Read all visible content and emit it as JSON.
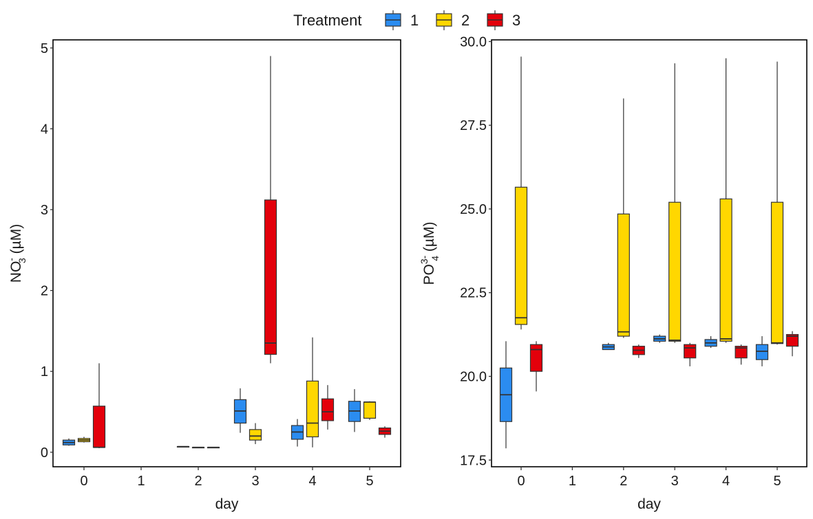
{
  "legend": {
    "title": "Treatment",
    "entries": [
      {
        "label": "1",
        "color": "#2b8cf0"
      },
      {
        "label": "2",
        "color": "#ffd700"
      },
      {
        "label": "3",
        "color": "#e3000b"
      }
    ]
  },
  "chart_data": [
    {
      "type": "boxplot",
      "xlabel": "day",
      "ylabel_main": "NO",
      "ylabel_sub": "3",
      "ylabel_sup": "-",
      "ylabel_unit": " (µM)",
      "categories": [
        "0",
        "1",
        "2",
        "3",
        "4",
        "5"
      ],
      "ylim": [
        -0.18,
        5.1
      ],
      "yticks": [
        0,
        1,
        2,
        3,
        4,
        5
      ],
      "yticklabels": [
        "0",
        "1",
        "2",
        "3",
        "4",
        "5"
      ],
      "boxes": [
        {
          "day": "0",
          "treatment": "1",
          "min": 0.08,
          "q1": 0.09,
          "median": 0.12,
          "q3": 0.15,
          "max": 0.17
        },
        {
          "day": "0",
          "treatment": "2",
          "min": 0.12,
          "q1": 0.13,
          "median": 0.15,
          "q3": 0.17,
          "max": 0.19
        },
        {
          "day": "0",
          "treatment": "3",
          "min": 0.05,
          "q1": 0.06,
          "median": 0.06,
          "q3": 0.57,
          "max": 1.1
        },
        {
          "day": "2",
          "treatment": "1",
          "min": 0.07,
          "q1": 0.07,
          "median": 0.07,
          "q3": 0.07,
          "max": 0.07
        },
        {
          "day": "2",
          "treatment": "2",
          "min": 0.06,
          "q1": 0.06,
          "median": 0.06,
          "q3": 0.06,
          "max": 0.06
        },
        {
          "day": "2",
          "treatment": "3",
          "min": 0.06,
          "q1": 0.06,
          "median": 0.06,
          "q3": 0.06,
          "max": 0.06
        },
        {
          "day": "3",
          "treatment": "1",
          "min": 0.24,
          "q1": 0.36,
          "median": 0.51,
          "q3": 0.65,
          "max": 0.79
        },
        {
          "day": "3",
          "treatment": "2",
          "min": 0.1,
          "q1": 0.15,
          "median": 0.2,
          "q3": 0.28,
          "max": 0.36
        },
        {
          "day": "3",
          "treatment": "3",
          "min": 1.1,
          "q1": 1.21,
          "median": 1.35,
          "q3": 3.12,
          "max": 4.9
        },
        {
          "day": "4",
          "treatment": "1",
          "min": 0.07,
          "q1": 0.16,
          "median": 0.25,
          "q3": 0.33,
          "max": 0.41
        },
        {
          "day": "4",
          "treatment": "2",
          "min": 0.06,
          "q1": 0.19,
          "median": 0.36,
          "q3": 0.88,
          "max": 1.42
        },
        {
          "day": "4",
          "treatment": "3",
          "min": 0.28,
          "q1": 0.39,
          "median": 0.5,
          "q3": 0.66,
          "max": 0.83
        },
        {
          "day": "5",
          "treatment": "1",
          "min": 0.25,
          "q1": 0.38,
          "median": 0.51,
          "q3": 0.63,
          "max": 0.78
        },
        {
          "day": "5",
          "treatment": "2",
          "min": 0.4,
          "q1": 0.42,
          "median": 0.62,
          "q3": 0.62,
          "max": 0.63
        },
        {
          "day": "5",
          "treatment": "3",
          "min": 0.18,
          "q1": 0.22,
          "median": 0.26,
          "q3": 0.3,
          "max": 0.32
        }
      ]
    },
    {
      "type": "boxplot",
      "xlabel": "day",
      "ylabel_main": "PO",
      "ylabel_sub": "4",
      "ylabel_sup": "3-",
      "ylabel_unit": " (µM)",
      "categories": [
        "0",
        "1",
        "2",
        "3",
        "4",
        "5"
      ],
      "ylim": [
        17.3,
        30.05
      ],
      "yticks": [
        17.5,
        20.0,
        22.5,
        25.0,
        27.5,
        30.0
      ],
      "yticklabels": [
        "17.5",
        "20.0",
        "22.5",
        "25.0",
        "27.5",
        "30.0"
      ],
      "boxes": [
        {
          "day": "0",
          "treatment": "1",
          "min": 17.85,
          "q1": 18.65,
          "median": 19.45,
          "q3": 20.25,
          "max": 21.05
        },
        {
          "day": "0",
          "treatment": "2",
          "min": 21.4,
          "q1": 21.55,
          "median": 21.75,
          "q3": 25.65,
          "max": 29.55
        },
        {
          "day": "0",
          "treatment": "3",
          "min": 19.55,
          "q1": 20.15,
          "median": 20.8,
          "q3": 20.95,
          "max": 21.05
        },
        {
          "day": "2",
          "treatment": "1",
          "min": 20.8,
          "q1": 20.8,
          "median": 20.88,
          "q3": 20.95,
          "max": 21.0
        },
        {
          "day": "2",
          "treatment": "2",
          "min": 21.15,
          "q1": 21.2,
          "median": 21.33,
          "q3": 24.85,
          "max": 28.3
        },
        {
          "day": "2",
          "treatment": "3",
          "min": 20.55,
          "q1": 20.65,
          "median": 20.78,
          "q3": 20.9,
          "max": 20.95
        },
        {
          "day": "3",
          "treatment": "1",
          "min": 21.0,
          "q1": 21.05,
          "median": 21.12,
          "q3": 21.2,
          "max": 21.25
        },
        {
          "day": "3",
          "treatment": "2",
          "min": 21.0,
          "q1": 21.05,
          "median": 21.08,
          "q3": 25.2,
          "max": 29.35
        },
        {
          "day": "3",
          "treatment": "3",
          "min": 20.3,
          "q1": 20.55,
          "median": 20.85,
          "q3": 20.95,
          "max": 21.0
        },
        {
          "day": "4",
          "treatment": "1",
          "min": 20.85,
          "q1": 20.9,
          "median": 21.0,
          "q3": 21.1,
          "max": 21.2
        },
        {
          "day": "4",
          "treatment": "2",
          "min": 21.0,
          "q1": 21.05,
          "median": 21.12,
          "q3": 25.3,
          "max": 29.5
        },
        {
          "day": "4",
          "treatment": "3",
          "min": 20.35,
          "q1": 20.55,
          "median": 20.85,
          "q3": 20.9,
          "max": 20.95
        },
        {
          "day": "5",
          "treatment": "1",
          "min": 20.3,
          "q1": 20.5,
          "median": 20.75,
          "q3": 20.95,
          "max": 21.2
        },
        {
          "day": "5",
          "treatment": "2",
          "min": 20.95,
          "q1": 20.98,
          "median": 21.0,
          "q3": 25.2,
          "max": 29.4
        },
        {
          "day": "5",
          "treatment": "3",
          "min": 20.6,
          "q1": 20.9,
          "median": 21.2,
          "q3": 21.25,
          "max": 21.35
        }
      ]
    }
  ]
}
